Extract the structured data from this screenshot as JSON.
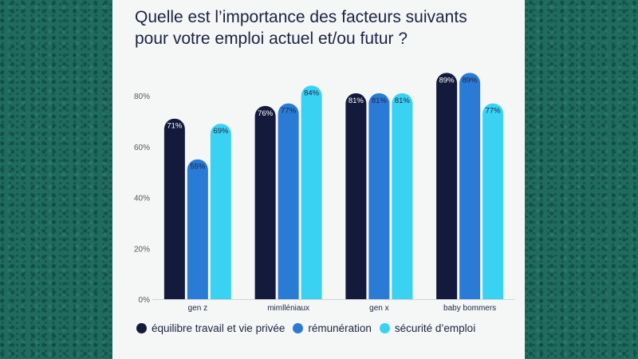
{
  "title_lines": [
    "Quelle est l’importance des facteurs suivants",
    "pour votre emploi actuel et/ou futur ?"
  ],
  "colors": {
    "series1": "#141a3c",
    "series2": "#2a7bd6",
    "series3": "#39d2f3",
    "text": "#1b2340"
  },
  "chart_data": {
    "type": "bar",
    "title": "Quelle est l’importance des facteurs suivants pour votre emploi actuel et/ou futur ?",
    "categories": [
      "gen z",
      "mimlléniaux",
      "gen x",
      "baby bommers"
    ],
    "series": [
      {
        "name": "équilibre travail et vie privée",
        "values": [
          71,
          76,
          81,
          89
        ],
        "labels": [
          "71%",
          "76%",
          "81%",
          "89%"
        ]
      },
      {
        "name": "rémunération",
        "values": [
          55,
          77,
          81,
          89
        ],
        "labels": [
          "55%",
          "77%",
          "81%",
          "89%"
        ]
      },
      {
        "name": "sécurité d’emploi",
        "values": [
          69,
          84,
          81,
          77
        ],
        "labels": [
          "69%",
          "84%",
          "81%",
          "77%"
        ]
      }
    ],
    "yticks": [
      0,
      20,
      40,
      60,
      80
    ],
    "ytick_labels": [
      "0%",
      "20%",
      "40%",
      "60%",
      "80%"
    ],
    "ylim": [
      0,
      100
    ],
    "xlabel": "",
    "ylabel": "",
    "legend_position": "bottom"
  }
}
